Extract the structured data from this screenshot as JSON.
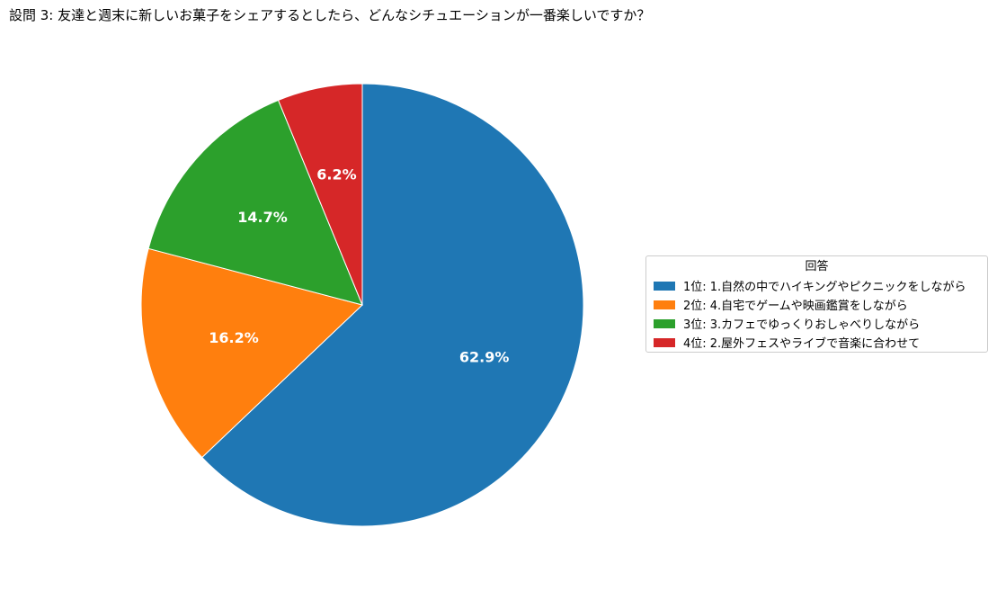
{
  "chart_data": {
    "type": "pie",
    "title": "設問 3: 友達と週末に新しいお菓子をシェアするとしたら、どんなシチュエーションが一番楽しいですか？",
    "legend_title": "回答",
    "legend_position": "center-right",
    "start_angle_deg": 90,
    "direction": "clockwise",
    "slices": [
      {
        "label": "1位: 1.自然の中でハイキングやピクニックをしながら",
        "value": 62.9,
        "pct_label": "62.9%",
        "color": "#1f77b4"
      },
      {
        "label": "2位: 4.自宅でゲームや映画鑑賞をしながら",
        "value": 16.2,
        "pct_label": "16.2%",
        "color": "#ff7f0e"
      },
      {
        "label": "3位: 3.カフェでゆっくりおしゃべりしながら",
        "value": 14.7,
        "pct_label": "14.7%",
        "color": "#2ca02c"
      },
      {
        "label": "4位: 2.屋外フェスやライブで音楽に合わせて",
        "value": 6.2,
        "pct_label": "6.2%",
        "color": "#d62728"
      }
    ]
  }
}
